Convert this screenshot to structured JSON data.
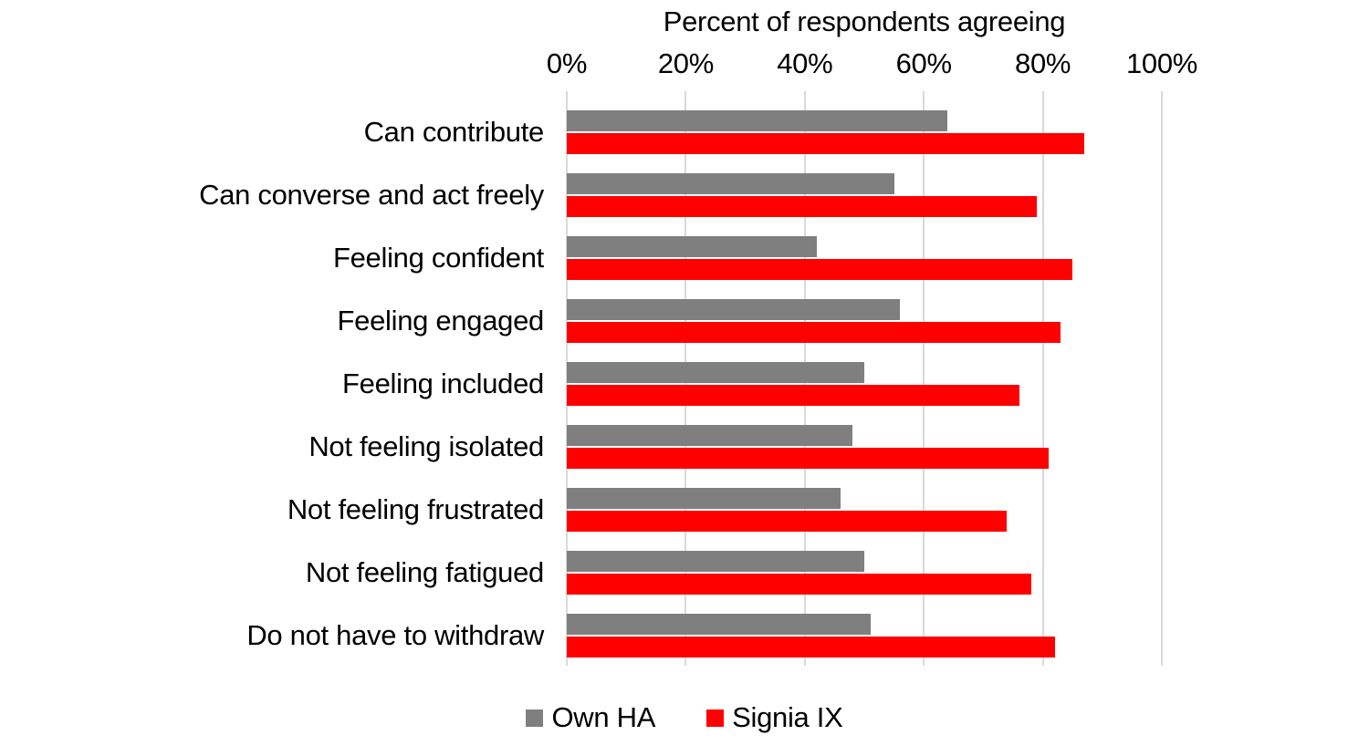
{
  "chart_data": {
    "type": "bar",
    "orientation": "horizontal",
    "title": "Percent of respondents agreeing",
    "categories": [
      "Can contribute",
      "Can converse and act freely",
      "Feeling confident",
      "Feeling engaged",
      "Feeling included",
      "Not feeling isolated",
      "Not feeling frustrated",
      "Not feeling fatigued",
      "Do not have to withdraw"
    ],
    "series": [
      {
        "name": "Own HA",
        "color": "#7F7F7F",
        "values": [
          64,
          55,
          42,
          56,
          50,
          48,
          46,
          50,
          51
        ]
      },
      {
        "name": "Signia IX",
        "color": "#FF0000",
        "values": [
          87,
          79,
          85,
          83,
          76,
          81,
          74,
          78,
          82
        ]
      }
    ],
    "x_ticks": [
      "0%",
      "20%",
      "40%",
      "60%",
      "80%",
      "100%"
    ],
    "xlim": [
      0,
      100
    ],
    "grid": "vertical",
    "gridline_color": "#D9D9D9",
    "legend_position": "bottom",
    "background_color": "#FFFFFF",
    "text_color": "#000000"
  }
}
